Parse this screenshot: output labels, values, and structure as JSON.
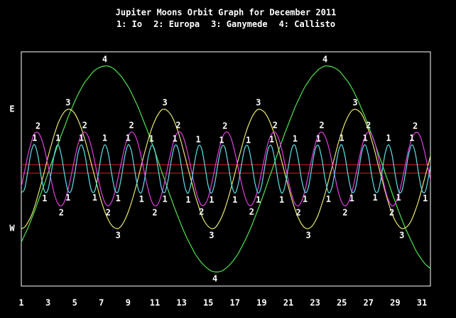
{
  "chart_data": {
    "type": "line",
    "title": "Jupiter Moons Orbit Graph for December 2011",
    "background": "#000000",
    "x": [
      1,
      1.25,
      1.5,
      1.75,
      2,
      2.25,
      2.5,
      2.75,
      3,
      3.25,
      3.5,
      3.75,
      4,
      4.25,
      4.5,
      4.75,
      5,
      5.25,
      5.5,
      5.75,
      6,
      6.25,
      6.5,
      6.75,
      7,
      7.25,
      7.5,
      7.75,
      8,
      8.25,
      8.5,
      8.75,
      9,
      9.25,
      9.5,
      9.75,
      10,
      10.25,
      10.5,
      10.75,
      11,
      11.25,
      11.5,
      11.75,
      12,
      12.25,
      12.5,
      12.75,
      13,
      13.25,
      13.5,
      13.75,
      14,
      14.25,
      14.5,
      14.75,
      15,
      15.25,
      15.5,
      15.75,
      16,
      16.25,
      16.5,
      16.75,
      17,
      17.25,
      17.5,
      17.75,
      18,
      18.25,
      18.5,
      18.75,
      19,
      19.25,
      19.5,
      19.75,
      20,
      20.25,
      20.5,
      20.75,
      21,
      21.25,
      21.5,
      21.75,
      22,
      22.25,
      22.5,
      22.75,
      23,
      23.25,
      23.5,
      23.75,
      24,
      24.25,
      24.5,
      24.75,
      25,
      25.25,
      25.5,
      25.75,
      26,
      26.25,
      26.5,
      26.75,
      27,
      27.25,
      27.5,
      27.75,
      28,
      28.25,
      28.5,
      28.75,
      29,
      29.25,
      29.5,
      29.75,
      30,
      30.25,
      30.5,
      30.75,
      31,
      31.25,
      31.5,
      31.75
    ],
    "series": [
      {
        "legend": "1: Io",
        "label": "1",
        "color": "#5fe0e8",
        "values": [
          -33,
          -28,
          -2,
          25,
          34,
          18,
          -12,
          -32,
          -29,
          -4,
          23,
          34,
          19,
          -9,
          -31,
          -30,
          -7,
          22,
          34,
          21,
          -7,
          -30,
          -31,
          -9,
          20,
          34,
          23,
          -5,
          -29,
          -32,
          -11,
          18,
          34,
          25,
          -3,
          -28,
          -33,
          -13,
          16,
          33,
          26,
          0,
          -27,
          -33,
          -15,
          14,
          33,
          28,
          2,
          -25,
          -34,
          -17,
          12,
          32,
          29,
          4,
          -24,
          -34,
          -19,
          10,
          31,
          30,
          6,
          -22,
          -34,
          -21,
          7,
          30,
          31,
          9,
          -20,
          -34,
          -23,
          5,
          29,
          32,
          11,
          -18,
          -34,
          -24,
          3,
          28,
          33,
          13,
          -16,
          -33,
          -26,
          1,
          27,
          33,
          15,
          -14,
          -33,
          -27,
          -2,
          25,
          34,
          17,
          -12,
          -32,
          -29,
          -4,
          24,
          34,
          19,
          -10,
          -31,
          -30,
          -6,
          22,
          34,
          21,
          -8,
          -31,
          -31,
          -8,
          20,
          34,
          23,
          -6,
          -30,
          -32,
          -11,
          18
        ]
      },
      {
        "legend": "2: Europa",
        "label": "2",
        "color": "#e040e0",
        "values": [
          -25,
          -3,
          20,
          38,
          50,
          51,
          43,
          27,
          5,
          -17,
          -37,
          -49,
          -52,
          -45,
          -29,
          -8,
          15,
          35,
          48,
          52,
          46,
          31,
          10,
          -13,
          -33,
          -47,
          -52,
          -47,
          -33,
          -12,
          10,
          31,
          46,
          52,
          48,
          35,
          15,
          -8,
          -29,
          -45,
          -52,
          -49,
          -36,
          -17,
          6,
          27,
          44,
          52,
          50,
          38,
          19,
          -3,
          -25,
          -42,
          -51,
          -50,
          -40,
          -21,
          1,
          23,
          41,
          51,
          51,
          41,
          23,
          1,
          -21,
          -39,
          -50,
          -51,
          -42,
          -26,
          -4,
          19,
          38,
          49,
          52,
          44,
          28,
          6,
          -17,
          -36,
          -49,
          -52,
          -45,
          -30,
          -8,
          14,
          34,
          48,
          52,
          46,
          32,
          11,
          -12,
          -33,
          -47,
          -52,
          -47,
          -33,
          -13,
          10,
          31,
          46,
          52,
          48,
          35,
          15,
          -7,
          -29,
          -44,
          -52,
          -49,
          -37,
          -18,
          5,
          27,
          43,
          51,
          50,
          39,
          20,
          -3,
          -25
        ]
      },
      {
        "legend": "3: Ganymede",
        "label": "3",
        "color": "#e8e870",
        "values": [
          -84,
          -82,
          -75,
          -66,
          -53,
          -37,
          -20,
          -2,
          17,
          34,
          50,
          64,
          74,
          81,
          84,
          83,
          78,
          69,
          57,
          42,
          25,
          7,
          -11,
          -29,
          -46,
          -60,
          -71,
          -79,
          -83,
          -84,
          -80,
          -72,
          -61,
          -47,
          -31,
          -13,
          6,
          24,
          41,
          56,
          68,
          77,
          83,
          84,
          81,
          75,
          65,
          52,
          36,
          18,
          0,
          -18,
          -36,
          -51,
          -65,
          -75,
          -81,
          -84,
          -83,
          -77,
          -68,
          -56,
          -41,
          -24,
          -6,
          13,
          30,
          47,
          61,
          72,
          80,
          84,
          83,
          79,
          71,
          60,
          46,
          29,
          11,
          -7,
          -25,
          -42,
          -57,
          -69,
          -78,
          -83,
          -84,
          -81,
          -74,
          -64,
          -50,
          -35,
          -17,
          1,
          19,
          37,
          52,
          65,
          75,
          82,
          84,
          82,
          77,
          67,
          55,
          40,
          23,
          4,
          -14,
          -32,
          -48,
          -62,
          -73,
          -80,
          -84,
          -83,
          -79,
          -71,
          -59,
          -45,
          -28,
          -10,
          8,
          26
        ]
      },
      {
        "legend": "4: Callisto",
        "label": "4",
        "color": "#50e050",
        "values": [
          -103,
          -93,
          -83,
          -71,
          -59,
          -46,
          -33,
          -20,
          -6,
          8,
          21,
          35,
          48,
          60,
          73,
          84,
          95,
          105,
          114,
          122,
          128,
          134,
          139,
          142,
          144,
          145,
          145,
          143,
          140,
          135,
          130,
          123,
          116,
          107,
          97,
          87,
          75,
          63,
          51,
          38,
          25,
          11,
          -3,
          -16,
          -30,
          -43,
          -56,
          -68,
          -80,
          -91,
          -101,
          -110,
          -119,
          -126,
          -132,
          -137,
          -141,
          -144,
          -145,
          -145,
          -144,
          -141,
          -137,
          -132,
          -126,
          -119,
          -110,
          -101,
          -91,
          -80,
          -68,
          -56,
          -43,
          -30,
          -16,
          -3,
          11,
          25,
          38,
          51,
          63,
          75,
          87,
          97,
          107,
          116,
          123,
          130,
          135,
          140,
          143,
          145,
          145,
          144,
          142,
          139,
          134,
          128,
          122,
          114,
          105,
          95,
          84,
          73,
          60,
          48,
          35,
          21,
          8,
          -6,
          -19,
          -33,
          -46,
          -59,
          -71,
          -83,
          -93,
          -103,
          -113,
          -121,
          -128,
          -134,
          -138,
          -142
        ]
      }
    ],
    "reference_lines": {
      "values": [
        6,
        -6
      ],
      "color": "#e02020"
    },
    "xlim": [
      1,
      31.64
    ],
    "xticks": [
      1,
      3,
      5,
      7,
      9,
      11,
      13,
      15,
      17,
      19,
      21,
      23,
      25,
      27,
      29,
      31
    ],
    "ylim": [
      -165,
      165
    ],
    "yticks": [
      {
        "value": 84,
        "label": "E"
      },
      {
        "value": -84,
        "label": "W"
      }
    ]
  }
}
